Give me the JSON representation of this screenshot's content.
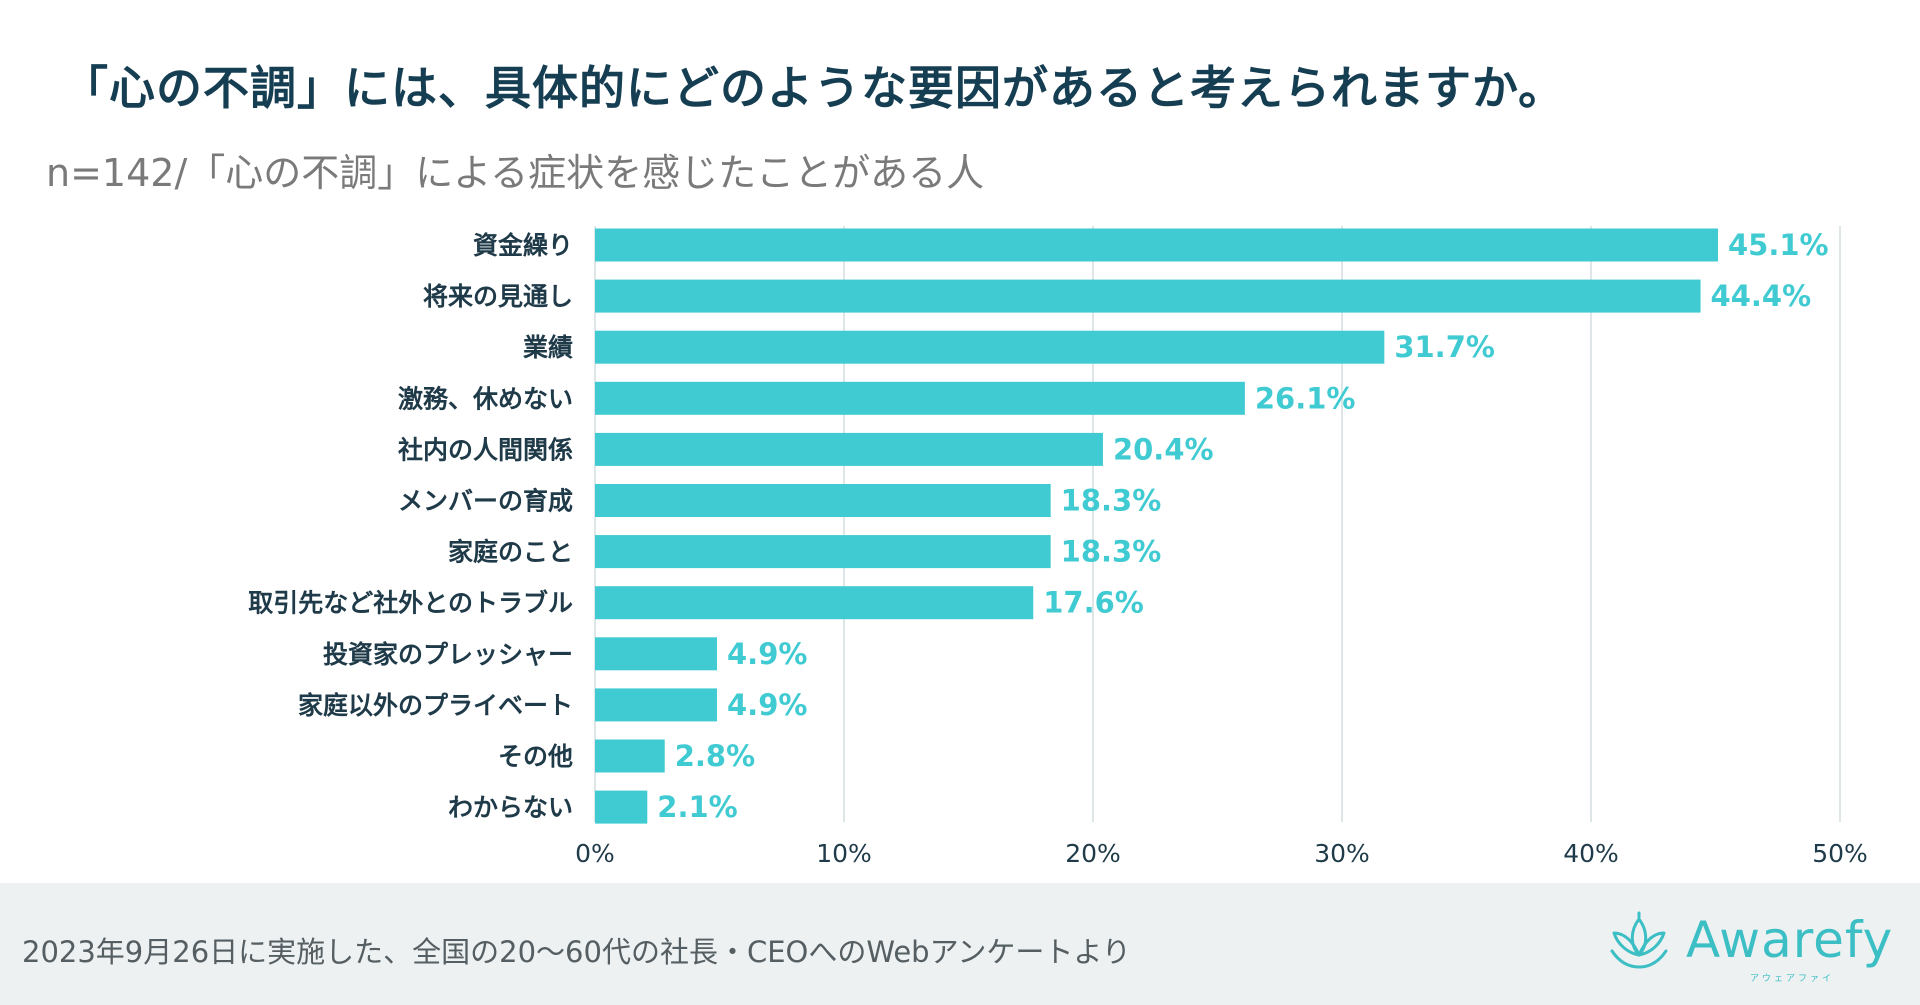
{
  "title": "「心の不調」には、具体的にどのような要因があると考えられますか。",
  "subtitle": "n=142/「心の不調」による症状を感じたことがある人",
  "chart_data": {
    "type": "bar",
    "orientation": "horizontal",
    "categories": [
      "資金繰り",
      "将来の見通し",
      "業績",
      "激務、休めない",
      "社内の人間関係",
      "メンバーの育成",
      "家庭のこと",
      "取引先など社外とのトラブル",
      "投資家のプレッシャー",
      "家庭以外のプライベート",
      "その他",
      "わからない"
    ],
    "values": [
      45.1,
      44.4,
      31.7,
      26.1,
      20.4,
      18.3,
      18.3,
      17.6,
      4.9,
      4.9,
      2.8,
      2.1
    ],
    "value_labels": [
      "45.1%",
      "44.4%",
      "31.7%",
      "26.1%",
      "20.4%",
      "18.3%",
      "18.3%",
      "17.6%",
      "4.9%",
      "4.9%",
      "2.8%",
      "2.1%"
    ],
    "xlim": [
      0,
      50
    ],
    "x_ticks": [
      0,
      10,
      20,
      30,
      40,
      50
    ],
    "x_tick_labels": [
      "0%",
      "10%",
      "20%",
      "30%",
      "40%",
      "50%"
    ],
    "grid": true,
    "xlabel": "",
    "ylabel": ""
  },
  "colors": {
    "bar": "#40cad2",
    "value_label": "#40cad2",
    "category_label": "#1f3a48",
    "tick_label": "#1f3a48",
    "grid": "#d3dee1",
    "title": "#163e52",
    "subtitle": "#7a7a7a",
    "brand": "#3cbfc4"
  },
  "footer": {
    "note": "2023年9月26日に実施した、全国の20〜60代の社長・CEOへのWebアンケートより",
    "brand_name": "Awarefy",
    "brand_kana": "アウェアファイ",
    "brand_icon": "lotus-icon"
  }
}
